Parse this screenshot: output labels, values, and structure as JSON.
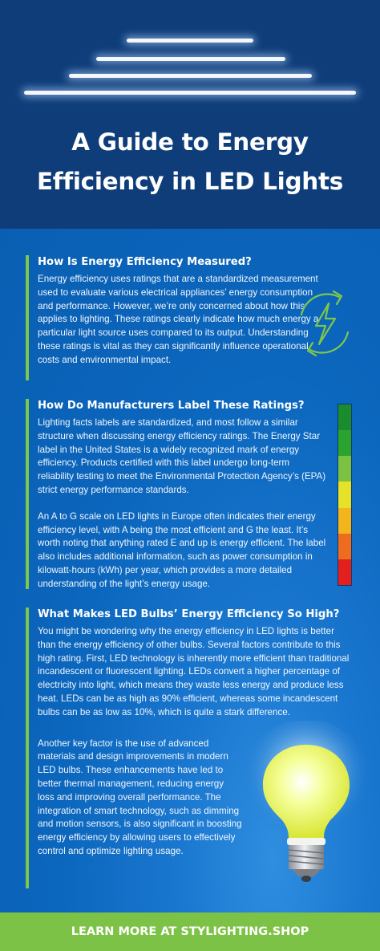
{
  "header": {
    "title_line1": "A Guide to Energy",
    "title_line2": "Efficiency in LED Lights"
  },
  "sections": [
    {
      "title": "How Is Energy Efficiency Measured?",
      "paragraphs": [
        "Energy efficiency uses ratings that are a standardized measurement used to evaluate various electrical appliances’ energy consumption and performance. However, we’re only concerned about how this applies to lighting. These ratings clearly indicate how much energy a particular light source uses compared to its output. Understanding these ratings is vital as they can significantly influence operational costs and environmental impact."
      ]
    },
    {
      "title": "How Do Manufacturers Label These Ratings?",
      "paragraphs": [
        "Lighting facts labels are standardized, and most follow a similar structure when discussing energy efficiency ratings. The Energy Star label in the United States is a widely recognized mark of energy efficiency. Products certified with this label undergo long-term reliability testing to meet the Environmental Protection Agency’s (EPA) strict energy performance standards.",
        "An A to G scale on LED lights in Europe often indicates their energy efficiency level, with A being the most efficient and G the least. It’s worth noting that anything rated E and up is energy efficient. The label also includes additional information, such as power consumption in kilowatt-hours (kWh) per year, which provides a more detailed understanding of the light’s energy usage."
      ]
    },
    {
      "title": "What Makes LED Bulbs’ Energy Efficiency So High?",
      "paragraphs": [
        "You might be wondering why the energy efficiency in LED lights is better than the energy efficiency of other bulbs. Several factors contribute to this high rating. First, LED technology is inherently more efficient than traditional incandescent or fluorescent lighting. LEDs convert a higher percentage of electricity into light, which means they waste less energy and produce less heat. LEDs can be as high as 90% efficient, whereas some incandescent bulbs can be as low as 10%, which is quite a stark difference.",
        "Another key factor is the use of advanced materials and design improvements in modern LED bulbs. These enhancements have led to better thermal management, reducing energy loss and improving overall performance. The integration of smart technology, such as dimming and motion sensors, is also significant in boosting energy efficiency by allowing users to effectively control and optimize lighting usage."
      ]
    }
  ],
  "icons": {
    "energy": "energy-cycle-icon",
    "bulb": "light-bulb-icon"
  },
  "rating_colors": [
    "#1a8c2e",
    "#2aa32f",
    "#7cc242",
    "#e6e22a",
    "#f2b51e",
    "#ee6c1e",
    "#e4201f"
  ],
  "colors": {
    "header_bg": "#0e3d7a",
    "main_bg": "#0a6fc4",
    "accent_green": "#7ec74a",
    "footer_bg": "#7cc246"
  },
  "footer": {
    "cta": "LEARN MORE AT STYLIGHTING.SHOP"
  }
}
